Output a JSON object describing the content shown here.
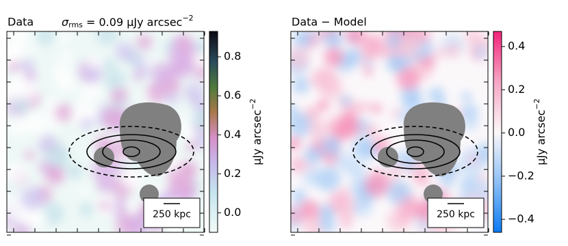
{
  "chart_data": [
    {
      "type": "image",
      "title": "Data",
      "subtitle": {
        "symbol": "σ",
        "subscript": "rms",
        "text": " = 0.09 μJy arcsec",
        "superscript": "−2"
      },
      "colorbar": {
        "lim": [
          -0.1,
          0.93
        ],
        "ticks": [
          {
            "value": 0,
            "label": "0.0"
          },
          0.2,
          0.4,
          0.6,
          0.8
        ],
        "label": {
          "text": "μJy arcsec",
          "superscript": "−2"
        }
      },
      "scalebar": "250 kpc"
    },
    {
      "type": "image",
      "title": "Data − Model",
      "colorbar": {
        "lim": [
          -0.46,
          0.47
        ],
        "ticks": [
          {
            "value": -0.4,
            "label": "−0.4"
          },
          {
            "value": -0.2,
            "label": "−0.2"
          },
          {
            "value": 0,
            "label": "0.0"
          },
          0.2,
          0.4
        ],
        "label": {
          "text": "μJy arcsec",
          "superscript": "−2"
        }
      },
      "scalebar": "250 kpc"
    }
  ]
}
